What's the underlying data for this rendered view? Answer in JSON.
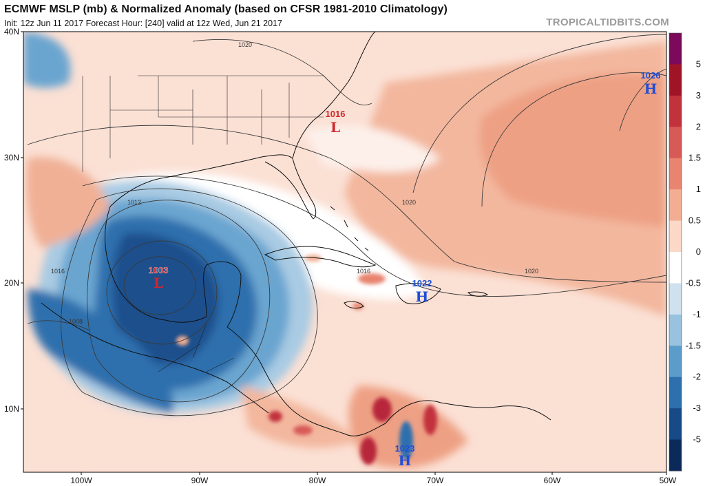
{
  "header": {
    "title": "ECMWF MSLP (mb) & Normalized Anomaly (based on CFSR 1981-2010 Climatology)",
    "subtitle": "Init: 12z Jun 11 2017   Forecast Hour: [240]   valid at 12z Wed, Jun 21 2017",
    "site": "TROPICALTIDBITS.COM"
  },
  "axes": {
    "lat_labels": [
      {
        "label": "40N",
        "value": 40
      },
      {
        "label": "30N",
        "value": 30
      },
      {
        "label": "20N",
        "value": 20
      },
      {
        "label": "10N",
        "value": 10
      }
    ],
    "lon_labels": [
      {
        "label": "100W",
        "value": -100
      },
      {
        "label": "90W",
        "value": -90
      },
      {
        "label": "80W",
        "value": -80
      },
      {
        "label": "70W",
        "value": -70
      },
      {
        "label": "60W",
        "value": -60
      },
      {
        "label": "50W",
        "value": -50
      }
    ],
    "lat_range": [
      5,
      40
    ],
    "lon_range": [
      -105,
      -50
    ]
  },
  "colorbar": {
    "labels": [
      "5",
      "3",
      "2",
      "1.5",
      "1",
      "0.5",
      "0",
      "-0.5",
      "-1",
      "-1.5",
      "-2",
      "-3",
      "-5"
    ],
    "colors": [
      "#7b0a5a",
      "#a01428",
      "#c2323c",
      "#d75a56",
      "#e88470",
      "#f2ad93",
      "#fbd8c8",
      "#ffffff",
      "#cfe0ee",
      "#98c2de",
      "#5c9ccb",
      "#2e6fad",
      "#174a86",
      "#0b2a5a"
    ]
  },
  "pressure_centers": [
    {
      "type": "L",
      "value": "1003",
      "color": "#d1262b"
    },
    {
      "type": "L",
      "value": "1016",
      "color": "#d1262b"
    },
    {
      "type": "H",
      "value": "1022",
      "color": "#1e4fd6"
    },
    {
      "type": "H",
      "value": "1026",
      "color": "#1e4fd6"
    },
    {
      "type": "H",
      "value": "1023",
      "color": "#1e4fd6"
    }
  ],
  "isobar_labels": [
    "1020",
    "1020",
    "1020",
    "1012",
    "1016",
    "1016",
    "1008"
  ]
}
